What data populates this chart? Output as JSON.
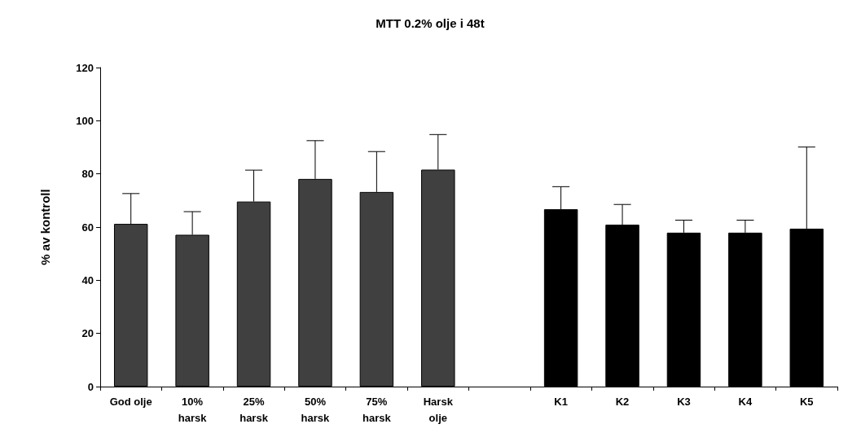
{
  "chart_data": {
    "type": "bar",
    "title": "MTT 0.2% olje i 48t",
    "ylabel": "% av kontroll",
    "categories": [
      "God olje",
      "10%\nharsk",
      "25%\nharsk",
      "50%\nharsk",
      "75%\nharsk",
      "Harsk\nolje",
      null,
      "K1",
      "K2",
      "K3",
      "K4",
      "K5"
    ],
    "values": [
      61.2,
      57.1,
      69.6,
      78.1,
      73.2,
      81.6,
      null,
      66.7,
      60.9,
      57.9,
      57.9,
      59.4
    ],
    "colors": [
      "#404040",
      "#404040",
      "#404040",
      "#404040",
      "#404040",
      "#404040",
      "#404040",
      "#000000",
      "#000000",
      "#000000",
      "#000000",
      "#000000"
    ],
    "errors": [
      [
        61.2,
        72.6
      ],
      [
        57.1,
        65.8
      ],
      [
        69.6,
        81.4
      ],
      [
        78.1,
        92.5
      ],
      [
        73.2,
        88.4
      ],
      [
        81.6,
        94.8
      ],
      null,
      [
        66.7,
        75.2
      ],
      [
        60.9,
        68.5
      ],
      [
        57.9,
        62.6
      ],
      [
        57.9,
        62.6
      ],
      [
        59.4,
        90.1
      ]
    ],
    "ylim": [
      0,
      120
    ],
    "yticks": [
      0,
      20,
      40,
      60,
      80,
      100,
      120
    ]
  }
}
